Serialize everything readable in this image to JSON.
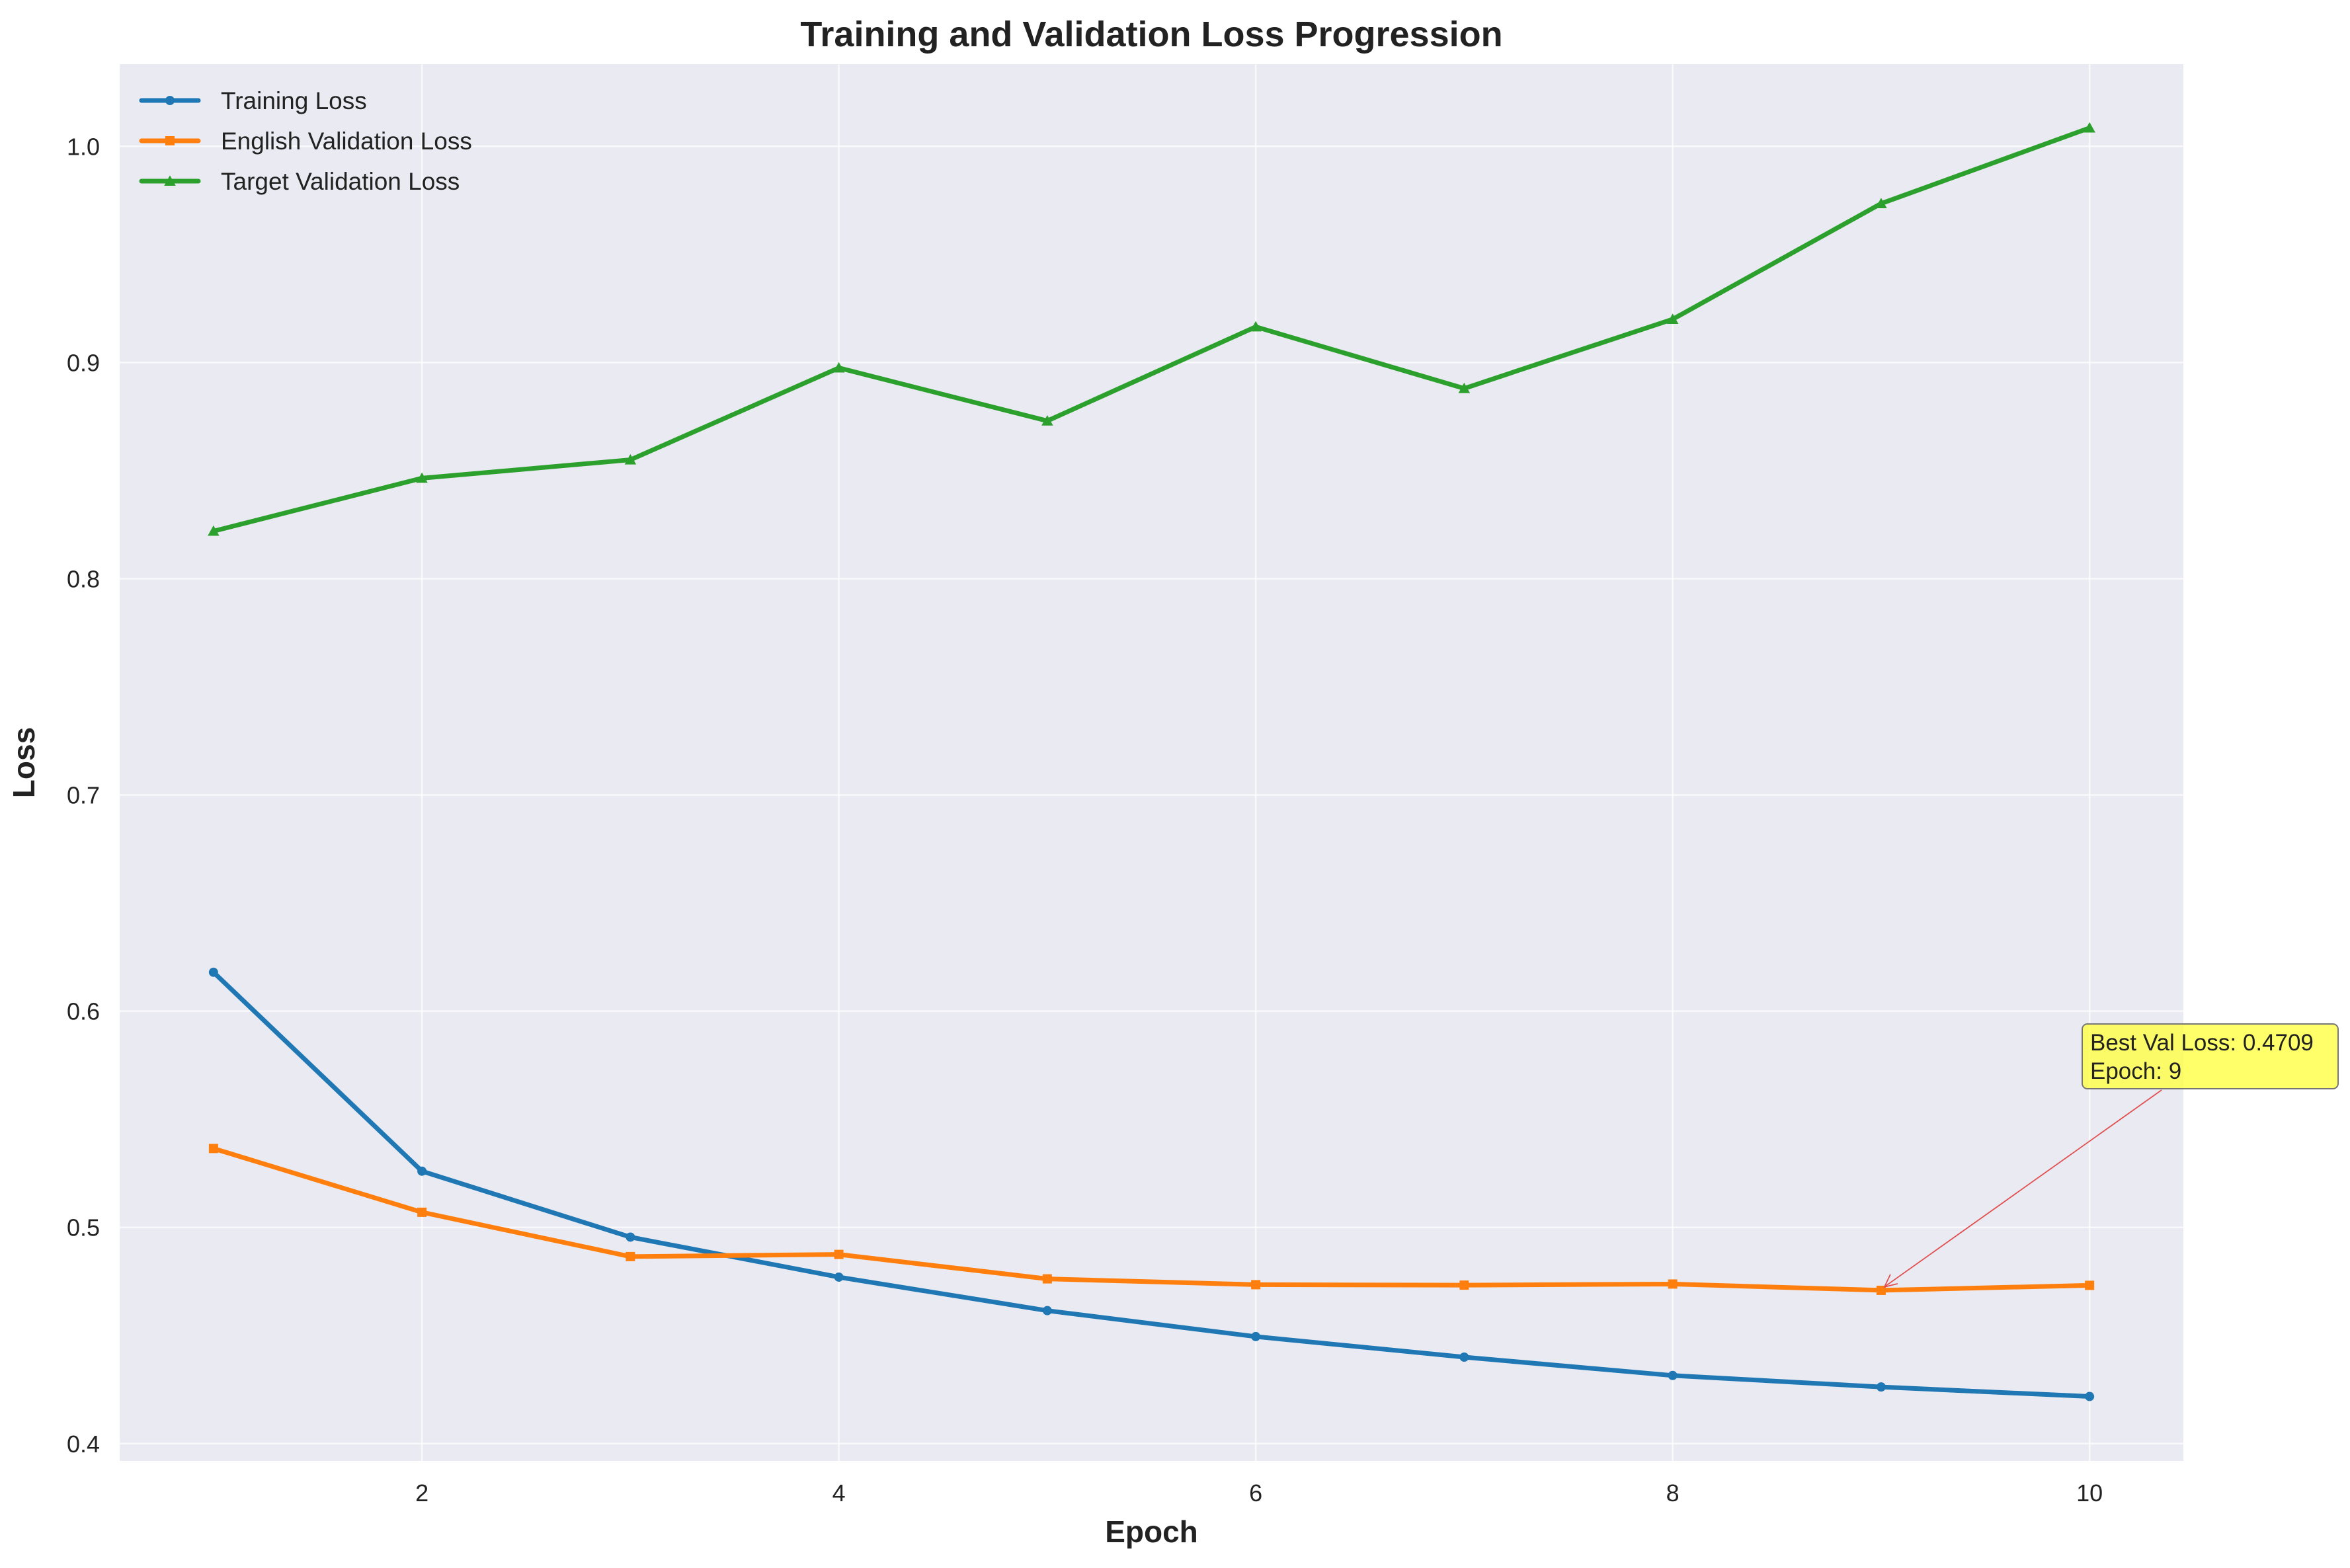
{
  "chart_data": {
    "type": "line",
    "title": "Training and Validation Loss Progression",
    "xlabel": "Epoch",
    "ylabel": "Loss",
    "x": [
      1,
      2,
      3,
      4,
      5,
      6,
      7,
      8,
      9,
      10
    ],
    "xlim": [
      0.55,
      10.45
    ],
    "ylim": [
      0.392,
      1.038
    ],
    "xticks": [
      2,
      4,
      6,
      8,
      10
    ],
    "yticks": [
      0.4,
      0.5,
      0.6,
      0.7,
      0.8,
      0.9,
      1.0
    ],
    "xtick_labels": [
      "2",
      "4",
      "6",
      "8",
      "10"
    ],
    "ytick_labels": [
      "0.4",
      "0.5",
      "0.6",
      "0.7",
      "0.8",
      "0.9",
      "1.0"
    ],
    "grid": true,
    "legend_position": "top-left",
    "series": [
      {
        "name": "Training Loss",
        "color": "#1f77b4",
        "marker": "circle",
        "values": [
          0.618,
          0.526,
          0.4955,
          0.477,
          0.4615,
          0.4495,
          0.44,
          0.4315,
          0.4262,
          0.4218
        ]
      },
      {
        "name": "English Validation Loss",
        "color": "#ff7f0e",
        "marker": "square",
        "values": [
          0.5365,
          0.507,
          0.4865,
          0.4875,
          0.4762,
          0.4735,
          0.4733,
          0.4738,
          0.4709,
          0.4732
        ]
      },
      {
        "name": "Target Validation Loss",
        "color": "#2ca02c",
        "marker": "triangle",
        "values": [
          0.822,
          0.8465,
          0.855,
          0.8975,
          0.873,
          0.9165,
          0.888,
          0.92,
          0.9735,
          1.0085
        ]
      }
    ],
    "annotations": [
      {
        "lines": [
          "Best Val Loss: 0.4709",
          "Epoch: 9"
        ],
        "point": {
          "x": 9,
          "y": 0.4709
        },
        "box_color": "#ffff44",
        "arrow_color": "#e05050"
      }
    ],
    "background_color": "#eaeaf2",
    "grid_color": "#ffffff"
  }
}
